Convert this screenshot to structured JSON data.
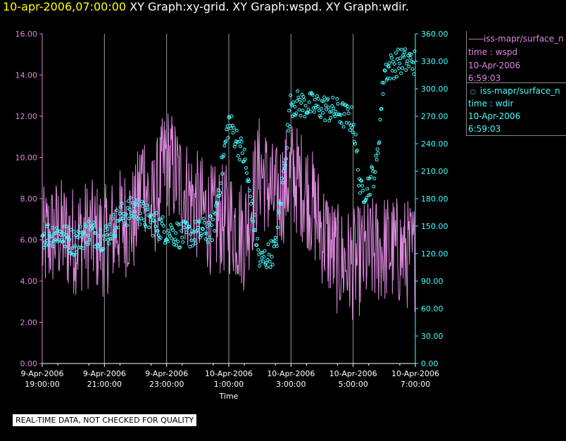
{
  "header": {
    "timestamp": "10-apr-2006,07:00:00",
    "graphs": "XY Graph:xy-grid.  XY Graph:wspd.  XY Graph:wdir."
  },
  "colors": {
    "wspd": "#dd88dd",
    "wdir": "#44ffff",
    "grid": "#9a9a9a",
    "background": "#000000"
  },
  "legend": {
    "wspd": {
      "name": "iss-mapr/surface_n",
      "field": "time : wspd",
      "date": "10-Apr-2006",
      "time": "6:59:03"
    },
    "wdir": {
      "name": "iss-mapr/surface_n",
      "field": "time : wdir",
      "date": "10-Apr-2006",
      "time": "6:59:03"
    }
  },
  "disclaimer": "REAL-TIME DATA, NOT CHECKED FOR QUALITY",
  "chart_data": {
    "type": "line",
    "xlabel": "Time",
    "x_range": [
      "9-Apr-2006 19:00:00",
      "10-Apr-2006 07:00:00"
    ],
    "x_ticks": [
      {
        "date": "9-Apr-2006",
        "time": "19:00:00",
        "hours": 0
      },
      {
        "date": "9-Apr-2006",
        "time": "21:00:00",
        "hours": 2
      },
      {
        "date": "9-Apr-2006",
        "time": "23:00:00",
        "hours": 4
      },
      {
        "date": "10-Apr-2006",
        "time": "1:00:00",
        "hours": 6
      },
      {
        "date": "10-Apr-2006",
        "time": "3:00:00",
        "hours": 8
      },
      {
        "date": "10-Apr-2006",
        "time": "5:00:00",
        "hours": 10
      },
      {
        "date": "10-Apr-2006",
        "time": "7:00:00",
        "hours": 12
      }
    ],
    "y_left": {
      "range": [
        0,
        16
      ],
      "ticks": [
        "0.00",
        "2.00",
        "4.00",
        "6.00",
        "8.00",
        "10.00",
        "12.00",
        "14.00",
        "16.00"
      ]
    },
    "y_right": {
      "range": [
        0,
        360
      ],
      "ticks": [
        "0.00",
        "30.00",
        "60.00",
        "90.00",
        "120.00",
        "150.00",
        "180.00",
        "210.00",
        "240.00",
        "270.00",
        "300.00",
        "330.00",
        "360.00"
      ]
    },
    "grid": "vertical",
    "series": [
      {
        "name": "wspd",
        "style": "line",
        "axis": "left",
        "hours": [
          0,
          0.5,
          1,
          1.5,
          2,
          2.5,
          3,
          3.25,
          3.5,
          4,
          4.5,
          5,
          5.5,
          6,
          6.5,
          7,
          7.5,
          8,
          8.5,
          9,
          9.5,
          10,
          10.5,
          11,
          11.5,
          12
        ],
        "values": [
          5.8,
          6.4,
          6.0,
          6.3,
          5.9,
          6.8,
          7.0,
          9.5,
          7.2,
          10.0,
          8.6,
          7.6,
          6.9,
          7.0,
          6.2,
          9.5,
          7.8,
          9.2,
          8.4,
          6.5,
          5.0,
          4.8,
          5.3,
          5.6,
          5.4,
          5.2
        ]
      },
      {
        "name": "wdir",
        "style": "points",
        "axis": "right",
        "hours": [
          0,
          0.5,
          1,
          1.5,
          2,
          2.5,
          3,
          3.5,
          4,
          4.5,
          5,
          5.5,
          6,
          6.5,
          7,
          7.5,
          8,
          8.5,
          9,
          9.5,
          10,
          10.25,
          10.5,
          10.75,
          11,
          11.5,
          12
        ],
        "values": [
          140,
          143,
          132,
          145,
          137,
          160,
          170,
          155,
          145,
          140,
          142,
          148,
          265,
          225,
          110,
          125,
          285,
          282,
          280,
          275,
          265,
          185,
          195,
          215,
          320,
          330,
          330
        ]
      }
    ]
  }
}
